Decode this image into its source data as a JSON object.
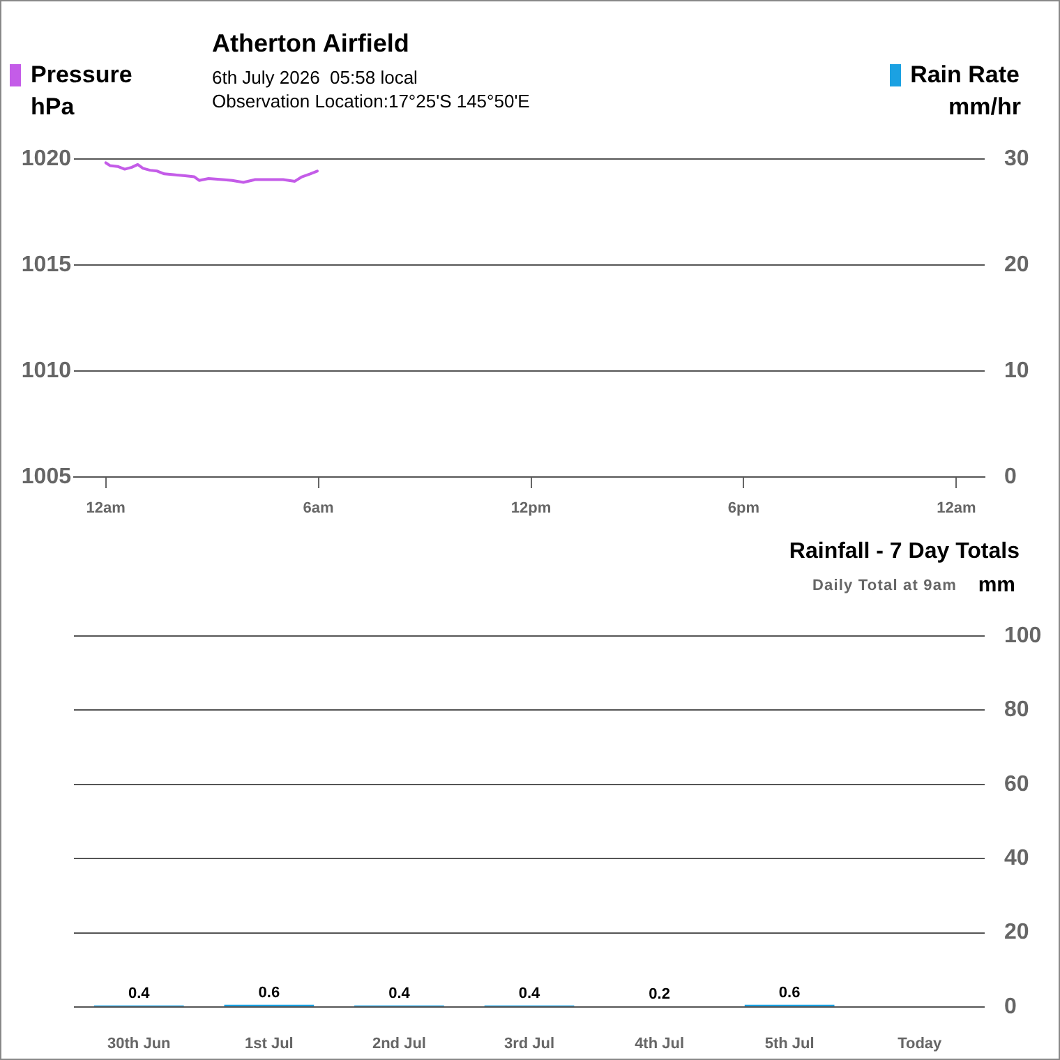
{
  "chart_data": [
    {
      "type": "line",
      "title": "Atherton Airfield",
      "subtitle": "6th July 2026  05:58 local\nObservation Location:17°25'S 145°50'E",
      "ylabel": "hPa",
      "y2label": "mm/hr",
      "x": [
        "2026-07-06T00:00",
        "2026-07-06T00:07",
        "2026-07-06T00:20",
        "2026-07-06T00:32",
        "2026-07-06T00:44",
        "2026-07-06T00:54",
        "2026-07-06T01:03",
        "2026-07-06T01:15",
        "2026-07-06T01:27",
        "2026-07-06T01:39",
        "2026-07-06T01:55",
        "2026-07-06T02:14",
        "2026-07-06T02:30",
        "2026-07-06T02:38",
        "2026-07-06T02:54",
        "2026-07-06T03:17",
        "2026-07-06T03:34",
        "2026-07-06T03:53",
        "2026-07-06T04:13",
        "2026-07-06T04:37",
        "2026-07-06T05:00",
        "2026-07-06T05:20",
        "2026-07-06T05:32",
        "2026-07-06T05:46",
        "2026-07-06T05:58"
      ],
      "series": [
        {
          "name": "Pressure",
          "color": "#c45ce8",
          "values": [
            1019.82,
            1019.69,
            1019.65,
            1019.52,
            1019.61,
            1019.74,
            1019.56,
            1019.47,
            1019.43,
            1019.3,
            1019.26,
            1019.21,
            1019.16,
            1018.99,
            1019.08,
            1019.03,
            1018.99,
            1018.9,
            1019.03,
            1019.03,
            1019.03,
            1018.95,
            1019.16,
            1019.3,
            1019.43
          ]
        },
        {
          "name": "Rain Rate",
          "color": "#1ba1e2",
          "axis": "y2",
          "values": [
            null,
            null,
            null,
            null,
            null,
            null,
            null,
            null,
            null,
            null,
            null,
            null,
            null,
            null,
            null,
            null,
            null,
            null,
            null,
            null,
            null,
            null,
            null,
            null,
            null
          ]
        }
      ],
      "xlim": [
        "2026-07-05T23:06",
        "2026-07-07T00:48"
      ],
      "xticks": [
        {
          "value": "2026-07-06T00:00",
          "label": "12am"
        },
        {
          "value": "2026-07-06T06:00",
          "label": "6am"
        },
        {
          "value": "2026-07-06T12:00",
          "label": "12pm"
        },
        {
          "value": "2026-07-06T18:00",
          "label": "6pm"
        },
        {
          "value": "2026-07-07T00:00",
          "label": "12am"
        }
      ],
      "ylim": [
        1005,
        1020
      ],
      "yticks": [
        1005,
        1010,
        1015,
        1020
      ],
      "y2lim": [
        0,
        30
      ],
      "y2ticks": [
        0,
        10,
        20,
        30
      ],
      "grid": "y",
      "legend": "top"
    },
    {
      "type": "bar",
      "title": "Rainfall - 7 Day Totals",
      "subtitle": "Daily Total at 9am",
      "ylabel": "mm",
      "categories": [
        "30th Jun",
        "1st Jul",
        "2nd Jul",
        "3rd Jul",
        "4th Jul",
        "5th Jul",
        "Today"
      ],
      "values": [
        0.4,
        0.6,
        0.4,
        0.4,
        0.2,
        0.6,
        null
      ],
      "color": "#1ba1e2",
      "ylim": [
        0,
        100
      ],
      "yticks": [
        0,
        20,
        40,
        60,
        80,
        100
      ],
      "grid": "y",
      "data_labels": true
    }
  ]
}
